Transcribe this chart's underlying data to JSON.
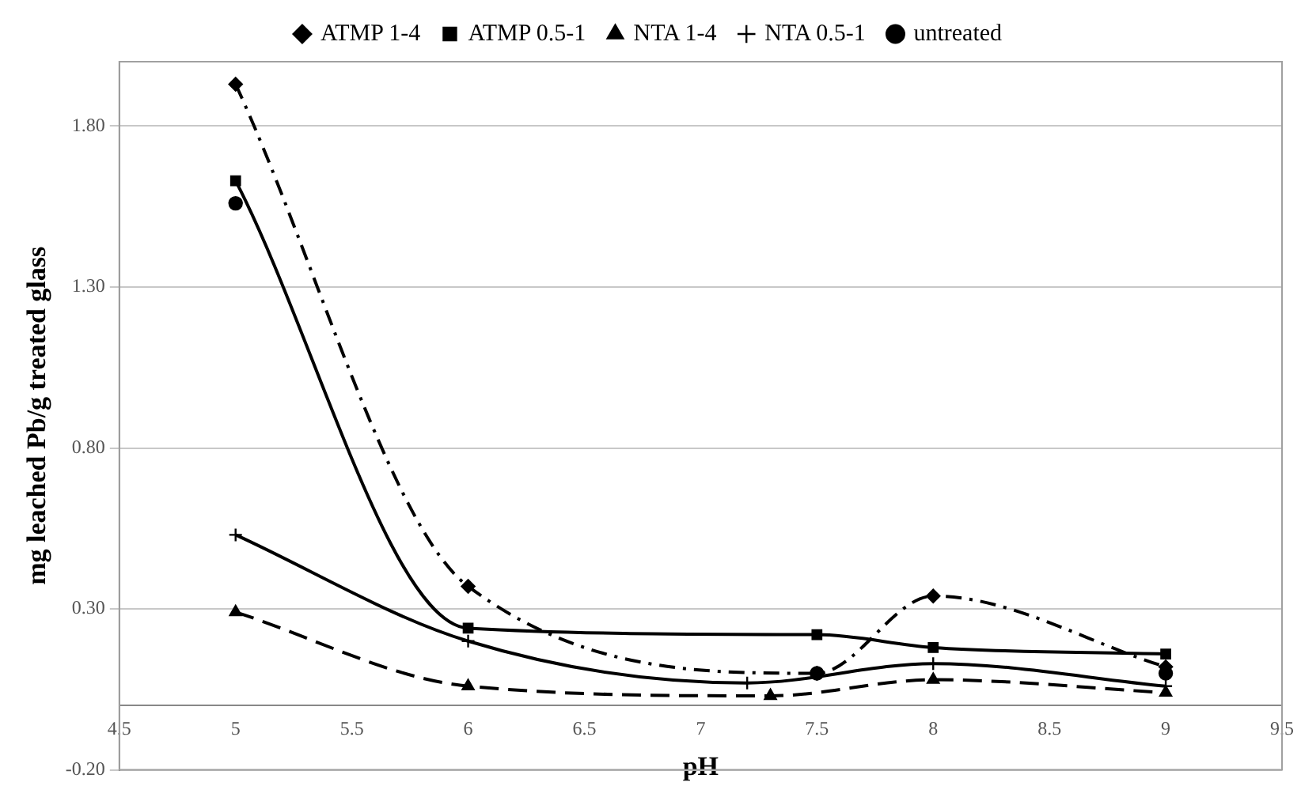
{
  "chart_data": {
    "type": "line",
    "xlabel": "pH",
    "ylabel": "mg leached Pb/g treated glass",
    "xlim": [
      4.5,
      9.5
    ],
    "xticks": [
      4.5,
      5,
      5.5,
      6,
      6.5,
      7,
      7.5,
      8,
      8.5,
      9,
      9.5
    ],
    "ylim": [
      -0.2,
      2.0
    ],
    "yticks": [
      {
        "value": -0.2,
        "label": "-0.20"
      },
      {
        "value": 0.3,
        "label": "0.30"
      },
      {
        "value": 0.8,
        "label": "0.80"
      },
      {
        "value": 1.3,
        "label": "1.30"
      },
      {
        "value": 1.8,
        "label": "1.80"
      }
    ],
    "grid": "y",
    "legend": "top",
    "series": [
      {
        "name": "ATMP 1-4",
        "color": "#000000",
        "marker": "diamond",
        "line_style": "dashdot",
        "x": [
          5,
          6,
          7.5,
          8,
          9
        ],
        "values": [
          1.93,
          0.37,
          0.1,
          0.34,
          0.12
        ]
      },
      {
        "name": "ATMP 0.5-1",
        "color": "#000000",
        "marker": "square",
        "line_style": "solid",
        "x": [
          5,
          6,
          7.5,
          8,
          9
        ],
        "values": [
          1.63,
          0.24,
          0.22,
          0.18,
          0.16
        ]
      },
      {
        "name": "NTA 1-4",
        "color": "#000000",
        "marker": "triangle",
        "line_style": "dashed",
        "x": [
          5,
          6,
          7.3,
          8,
          9
        ],
        "values": [
          0.29,
          0.06,
          0.03,
          0.08,
          0.04
        ]
      },
      {
        "name": "NTA 0.5-1",
        "color": "#000000",
        "marker": "cross",
        "line_style": "solid",
        "x": [
          5,
          6,
          7.2,
          8,
          9
        ],
        "values": [
          0.53,
          0.2,
          0.07,
          0.13,
          0.06
        ]
      },
      {
        "name": "untreated",
        "type": "scatter",
        "color": "#000000",
        "marker": "circle",
        "x": [
          5,
          7.5,
          9
        ],
        "values": [
          1.56,
          0.1,
          0.1
        ]
      }
    ]
  }
}
